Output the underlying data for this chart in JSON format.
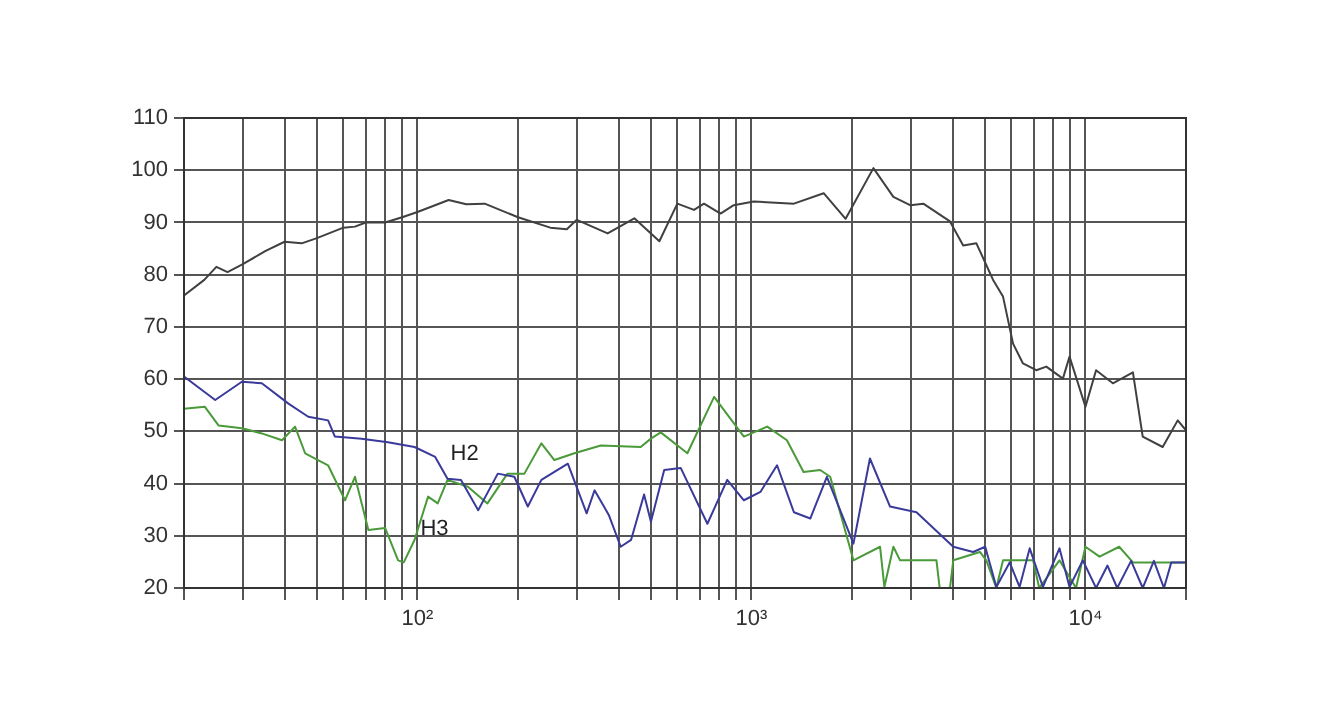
{
  "chart_data": {
    "type": "line",
    "log": "x",
    "grid": true,
    "legend": false,
    "marker": "none",
    "line_style": "solid",
    "xlim": [
      20,
      20000
    ],
    "xticks": [
      {
        "value": 20,
        "label": null
      },
      {
        "value": 30,
        "label": null
      },
      {
        "value": 40,
        "label": null
      },
      {
        "value": 50,
        "label": null
      },
      {
        "value": 60,
        "label": null
      },
      {
        "value": 70,
        "label": null
      },
      {
        "value": 80,
        "label": null
      },
      {
        "value": 90,
        "label": null
      },
      {
        "value": 100,
        "label": "10²"
      },
      {
        "value": 200,
        "label": null
      },
      {
        "value": 300,
        "label": null
      },
      {
        "value": 400,
        "label": null
      },
      {
        "value": 500,
        "label": null
      },
      {
        "value": 600,
        "label": null
      },
      {
        "value": 700,
        "label": null
      },
      {
        "value": 800,
        "label": null
      },
      {
        "value": 900,
        "label": null
      },
      {
        "value": 1000,
        "label": "10³"
      },
      {
        "value": 2000,
        "label": null
      },
      {
        "value": 3000,
        "label": null
      },
      {
        "value": 4000,
        "label": null
      },
      {
        "value": 5000,
        "label": null
      },
      {
        "value": 6000,
        "label": null
      },
      {
        "value": 7000,
        "label": null
      },
      {
        "value": 8000,
        "label": null
      },
      {
        "value": 9000,
        "label": null
      },
      {
        "value": 10000,
        "label": "10⁴"
      },
      {
        "value": 20000,
        "label": null
      }
    ],
    "ylim": [
      20,
      110
    ],
    "yticks": [
      20,
      30,
      40,
      50,
      60,
      70,
      80,
      90,
      100,
      110
    ],
    "series": [
      {
        "color": "#404040",
        "x": [
          20,
          23,
          25,
          27,
          30,
          35,
          40,
          45,
          50,
          60,
          65,
          70,
          80,
          90,
          100,
          124,
          140,
          159,
          200,
          250,
          280,
          300,
          371,
          446,
          530,
          600,
          673,
          721,
          808,
          885,
          1016,
          1340,
          1645,
          1914,
          2318,
          2660,
          2985,
          3270,
          3930,
          4305,
          4715,
          5290,
          5665,
          6070,
          6500,
          7125,
          7635,
          8560,
          8960,
          10000,
          10760,
          12080,
          13870,
          14840,
          17030,
          18890,
          20000
        ],
        "values": [
          76,
          79,
          81.5,
          80.5,
          82,
          84.5,
          86.3,
          86,
          87,
          89,
          89.2,
          90,
          90,
          91,
          92,
          94.3,
          93.5,
          93.6,
          91,
          89,
          88.7,
          90.5,
          87.9,
          90.8,
          86.4,
          93.6,
          92.4,
          93.6,
          91.7,
          93.3,
          94,
          93.6,
          95.6,
          90.7,
          100.4,
          94.9,
          93.3,
          93.6,
          90.2,
          85.6,
          86,
          79,
          75.8,
          66.8,
          63,
          61.7,
          62.4,
          60.1,
          64.3,
          54.7,
          61.7,
          59.2,
          61.3,
          49,
          47,
          52.1,
          50.2
        ]
      },
      {
        "name": "H2",
        "color": "#3a3a9a",
        "x": [
          20,
          24.8,
          29.8,
          34.2,
          41.1,
          47.1,
          54,
          56.6,
          68,
          81.6,
          98,
          113,
          123,
          135,
          152,
          174,
          195,
          214,
          235,
          282,
          321,
          339,
          374,
          406,
          436,
          477,
          500,
          548,
          614,
          738,
          846,
          949,
          1064,
          1193,
          1340,
          1500,
          1682,
          2020,
          2263,
          2600,
          3120,
          4020,
          4610,
          5010,
          5410,
          5930,
          6350,
          6810,
          7460,
          8360,
          8960,
          9820,
          10760,
          11640,
          12450,
          13700,
          14840,
          16030,
          17180,
          18070,
          20000
        ],
        "values": [
          60.5,
          56,
          59.5,
          59.2,
          55.3,
          52.8,
          52.1,
          49,
          48.6,
          47.9,
          47,
          45.1,
          40.9,
          40.7,
          34.9,
          41.9,
          41.3,
          35.6,
          40.7,
          43.8,
          34.3,
          38.7,
          34,
          27.9,
          29.2,
          37.9,
          32.7,
          42.6,
          43,
          32.3,
          40.7,
          36.8,
          38.4,
          43.5,
          34.5,
          33.3,
          41.3,
          28.5,
          44.8,
          35.6,
          34.5,
          27.9,
          26.9,
          27.9,
          20.2,
          24.9,
          20.2,
          27.6,
          20.2,
          27.6,
          20.2,
          25.3,
          20,
          24.3,
          20,
          25.2,
          20,
          25.2,
          20,
          24.9,
          24.9
        ]
      },
      {
        "name": "H3",
        "color": "#4a9a3a",
        "x": [
          20,
          23.1,
          25.4,
          29.8,
          34.2,
          39.3,
          43,
          46.1,
          54,
          60.7,
          65,
          71.3,
          80,
          87.5,
          91,
          98,
          107.6,
          115,
          123,
          141.6,
          162,
          186,
          209,
          235,
          257,
          295,
          354,
          466,
          500,
          535,
          643,
          773,
          949,
          1115,
          1277,
          1432,
          1606,
          1721,
          2020,
          2427,
          2500,
          2660,
          2786,
          3580,
          3660,
          3930,
          4020,
          4830,
          5050,
          5410,
          5665,
          6970,
          7270,
          8360,
          9370,
          10000,
          11020,
          12620,
          13870,
          20000
        ],
        "values": [
          54.3,
          54.7,
          51.1,
          50.6,
          49.6,
          48.3,
          50.9,
          45.8,
          43.5,
          36.8,
          41.3,
          31.1,
          31.5,
          25.3,
          24.9,
          29.2,
          37.5,
          36.2,
          40.7,
          39.4,
          36.2,
          41.9,
          41.9,
          47.7,
          44.5,
          45.8,
          47.3,
          47,
          48.6,
          49.8,
          45.8,
          56.6,
          49,
          50.9,
          48.3,
          42.2,
          42.6,
          41.3,
          25.3,
          27.9,
          20.2,
          27.9,
          25.3,
          25.3,
          20,
          20,
          25.3,
          26.9,
          25.3,
          20,
          25.3,
          25.3,
          20,
          25.3,
          20,
          27.9,
          26,
          27.9,
          24.9,
          24.9
        ]
      }
    ]
  }
}
